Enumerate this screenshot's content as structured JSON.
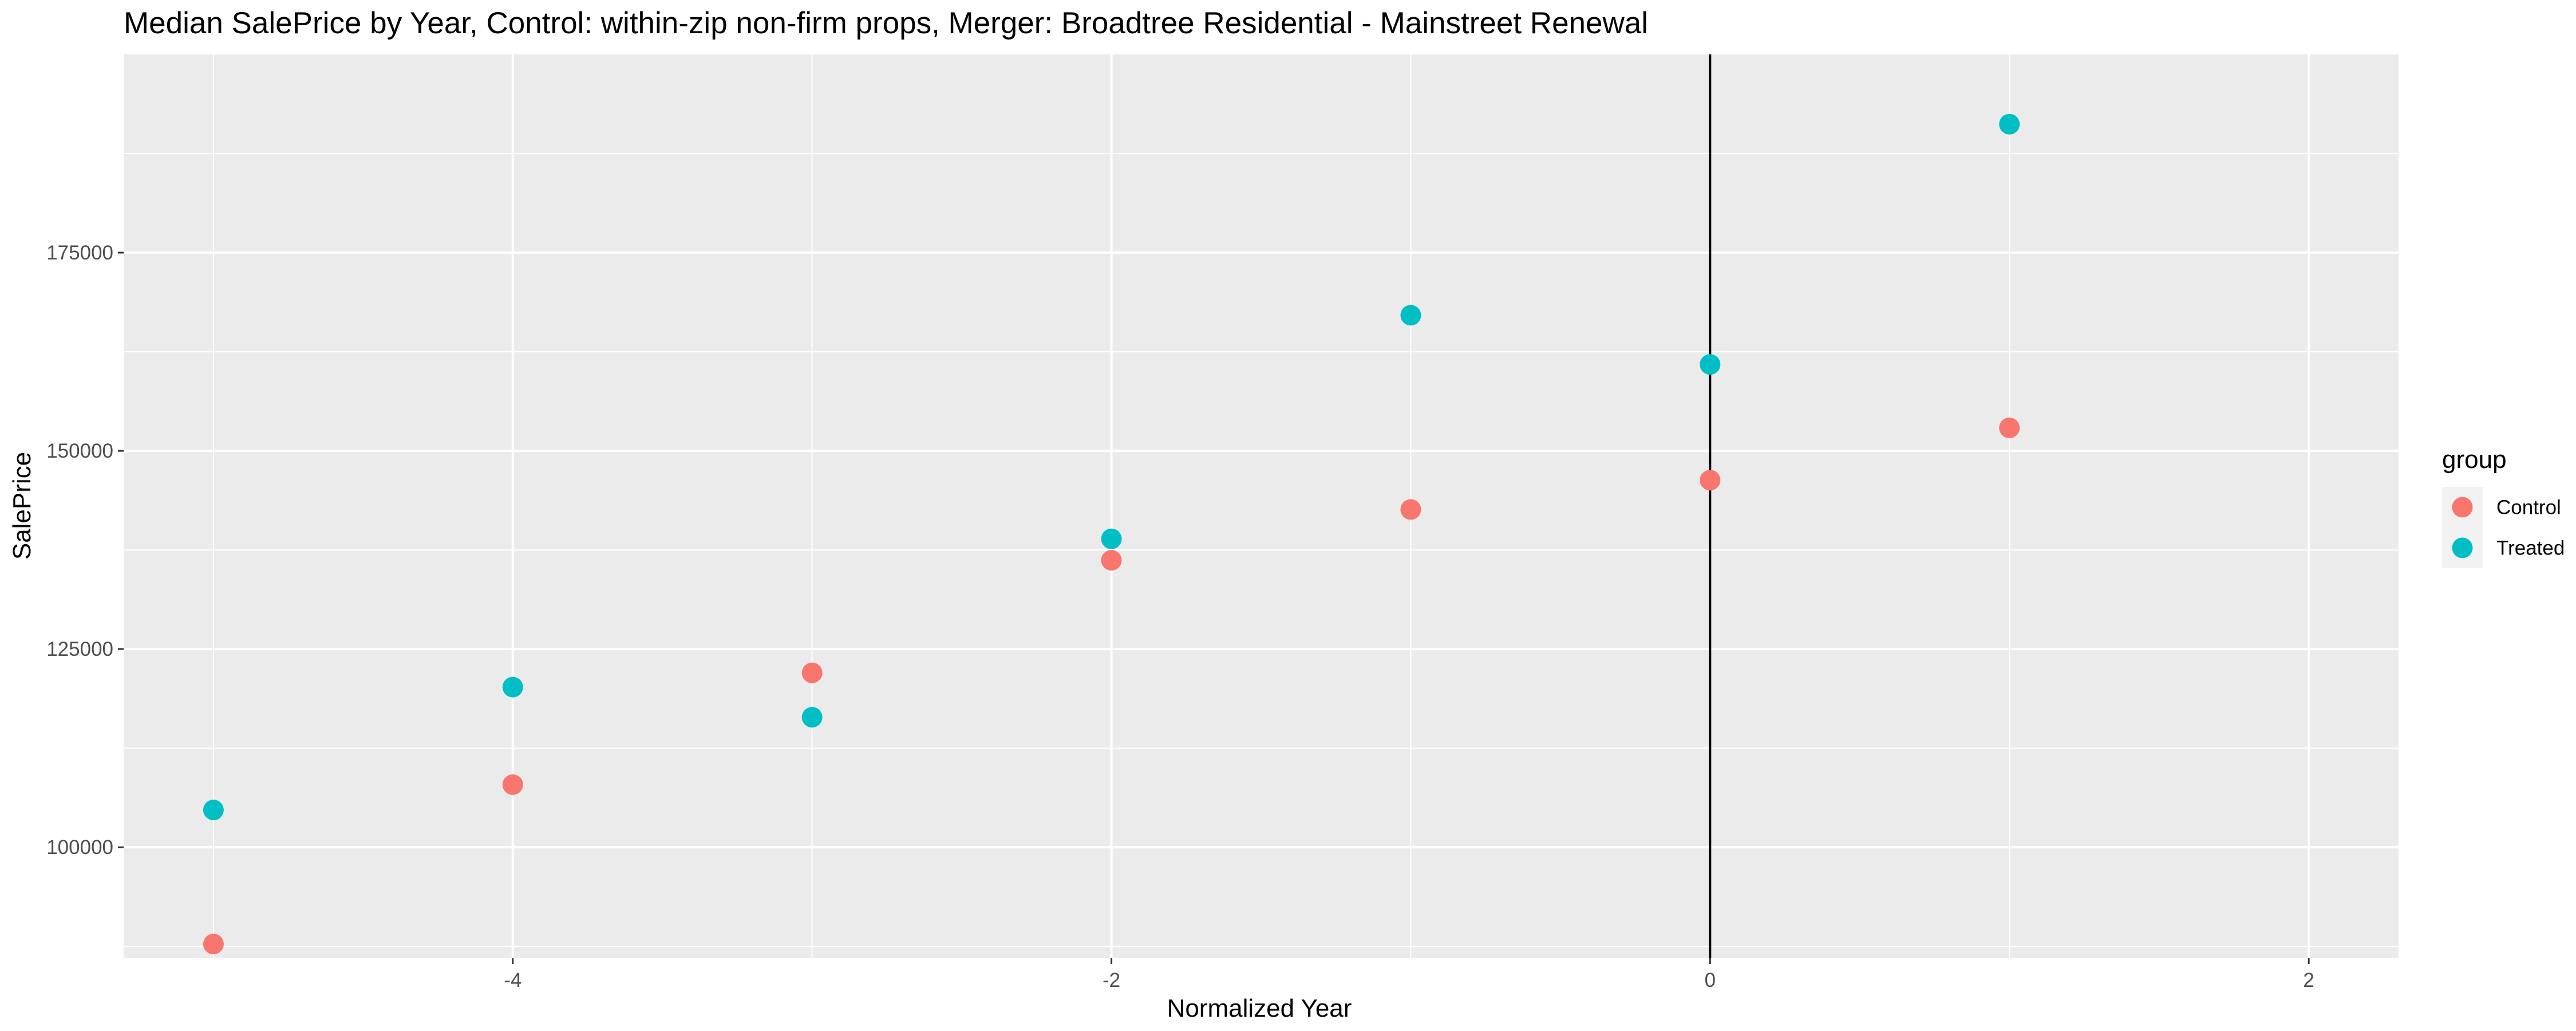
{
  "chart_data": {
    "type": "scatter",
    "title": "Median SalePrice by Year, Control: within-zip non-firm props, Merger: Broadtree Residential - Mainstreet Renewal",
    "xlabel": "Normalized Year",
    "ylabel": "SalePrice",
    "xlim": [
      -5.3,
      2.3
    ],
    "ylim": [
      86000,
      200000
    ],
    "x_ticks": [
      -4,
      -2,
      0,
      2
    ],
    "x_tick_labels": [
      "-4",
      "-2",
      "0",
      "2"
    ],
    "y_ticks": [
      100000,
      125000,
      150000,
      175000
    ],
    "y_tick_labels": [
      "100000",
      "125000",
      "150000",
      "175000"
    ],
    "grid": true,
    "vline_x": 0,
    "legend": {
      "title": "group",
      "position": "right"
    },
    "series": [
      {
        "name": "Control",
        "color": "#F8766D",
        "points": [
          {
            "x": -5,
            "y": 87800
          },
          {
            "x": -4,
            "y": 107900
          },
          {
            "x": -3,
            "y": 122000
          },
          {
            "x": -2,
            "y": 136200
          },
          {
            "x": -1,
            "y": 142600
          },
          {
            "x": 0,
            "y": 146300
          },
          {
            "x": 1,
            "y": 152900
          }
        ]
      },
      {
        "name": "Treated",
        "color": "#00BFC4",
        "points": [
          {
            "x": -5,
            "y": 104700
          },
          {
            "x": -4,
            "y": 120200
          },
          {
            "x": -3,
            "y": 116400
          },
          {
            "x": -2,
            "y": 138900
          },
          {
            "x": -1,
            "y": 167100
          },
          {
            "x": 0,
            "y": 160900
          },
          {
            "x": 1,
            "y": 191200
          }
        ]
      }
    ]
  }
}
